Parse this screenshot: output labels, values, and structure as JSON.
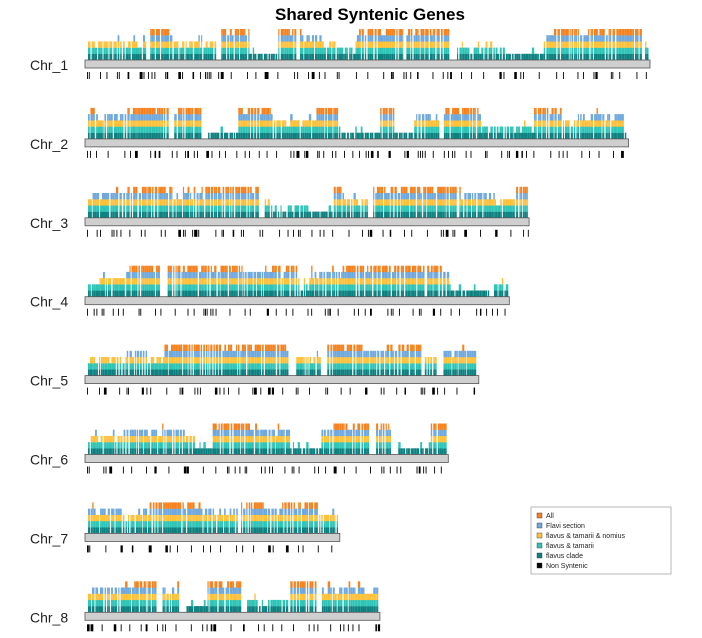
{
  "chart_data": {
    "type": "bar",
    "title": "Shared Syntenic Genes",
    "xlabel": "",
    "ylabel": "",
    "legend_position": "bottom-right",
    "legend": [
      {
        "name": "All",
        "color": "#f5821f"
      },
      {
        "name": "Flavi section",
        "color": "#6fa8dc"
      },
      {
        "name": "flavus & tamarii & nomius",
        "color": "#ffc03a"
      },
      {
        "name": "flavus & tamarii",
        "color": "#2ec4b6"
      },
      {
        "name": "flavus clade",
        "color": "#0d8080"
      },
      {
        "name": "Non Syntenic",
        "color": "#000000"
      }
    ],
    "chromosomes": [
      {
        "name": "Chr_1",
        "length": 1.0,
        "seed": 11
      },
      {
        "name": "Chr_2",
        "length": 0.962,
        "seed": 23
      },
      {
        "name": "Chr_3",
        "length": 0.786,
        "seed": 37
      },
      {
        "name": "Chr_4",
        "length": 0.751,
        "seed": 41
      },
      {
        "name": "Chr_5",
        "length": 0.697,
        "seed": 53
      },
      {
        "name": "Chr_6",
        "length": 0.643,
        "seed": 67
      },
      {
        "name": "Chr_7",
        "length": 0.451,
        "seed": 79
      },
      {
        "name": "Chr_8",
        "length": 0.522,
        "seed": 97
      }
    ]
  }
}
